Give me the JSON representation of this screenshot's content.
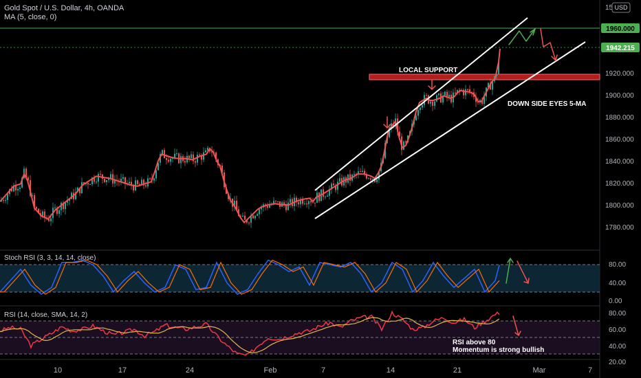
{
  "header": {
    "title": "Gold Spot / U.S. Dollar, 4h, OANDA",
    "ma_label": "MA (5, close, 0)",
    "currency_badge": "USD"
  },
  "price_scale": {
    "ticks": [
      "1780.000",
      "1800.000",
      "1820.000",
      "1840.000",
      "1860.000",
      "1880.000",
      "1900.000",
      "1920.000"
    ],
    "top_tick": "15",
    "level_label": "1960.000",
    "current_label": "1942.215"
  },
  "annotations": {
    "local_support": "LOCAL SUPPORT",
    "down_side": "DOWN SIDE EYES 5-MA",
    "rsi_note_1": "RSI above 80",
    "rsi_note_2": "Momentum is strong bullish"
  },
  "stoch": {
    "title": "Stoch RSI (3, 3, 14, 14, close)",
    "ticks": [
      "80.00",
      "40.00",
      "0.00"
    ]
  },
  "rsi": {
    "title": "RSI (14, close, SMA, 14, 2)",
    "ticks": [
      "80.00",
      "60.00",
      "40.00",
      "20.00"
    ]
  },
  "time_axis": [
    "10",
    "17",
    "24",
    "Feb",
    "7",
    "14",
    "21",
    "Mar",
    "7"
  ],
  "colors": {
    "up": "#26a69a",
    "down": "#ef5350",
    "ma": "#ef5350",
    "level": "#4caf50",
    "support_zone": "#b71c1c",
    "stoch_k": "#2962ff",
    "stoch_d": "#ff6d00",
    "rsi": "#f23645",
    "rsi_ma": "#e0b84c"
  },
  "chart_data": [
    {
      "type": "line",
      "title": "Gold Spot / U.S. Dollar, 4h, OANDA",
      "series": [
        {
          "name": "MA (5, close, 0)",
          "x": [
            0,
            10,
            20,
            30,
            35,
            40,
            45,
            50,
            60,
            70,
            80,
            90,
            100,
            110,
            120,
            130,
            140,
            150,
            160,
            170,
            180,
            190,
            200,
            210,
            220,
            225,
            230,
            235,
            240,
            250,
            260,
            270,
            280,
            290,
            300,
            305,
            310,
            315,
            320,
            325,
            330,
            335,
            340,
            345,
            350,
            355,
            360,
            365,
            370,
            375,
            380,
            390,
            400,
            410,
            420,
            430,
            440,
            450,
            455,
            460,
            470,
            480,
            490,
            500,
            510,
            520,
            530,
            540,
            545,
            550,
            555,
            560,
            565,
            570,
            575,
            580,
            585,
            590,
            595,
            600,
            605,
            610,
            615,
            620,
            625,
            630,
            635,
            640,
            645,
            650,
            655,
            660,
            665,
            670,
            675,
            680,
            685,
            690,
            695,
            700,
            705,
            710,
            715,
            720,
            725,
            727
          ],
          "values": [
            1803,
            1810,
            1817,
            1819,
            1828,
            1822,
            1810,
            1797,
            1790,
            1787,
            1795,
            1800,
            1805,
            1810,
            1818,
            1822,
            1826,
            1825,
            1824,
            1822,
            1820,
            1818,
            1817,
            1819,
            1821,
            1830,
            1840,
            1846,
            1845,
            1843,
            1842,
            1842,
            1841,
            1844,
            1846,
            1851,
            1848,
            1840,
            1835,
            1823,
            1813,
            1804,
            1800,
            1794,
            1788,
            1784,
            1787,
            1790,
            1793,
            1796,
            1798,
            1800,
            1801,
            1800,
            1800,
            1803,
            1805,
            1806,
            1803,
            1807,
            1810,
            1814,
            1818,
            1822,
            1824,
            1828,
            1828,
            1826,
            1824,
            1829,
            1836,
            1852,
            1868,
            1872,
            1876,
            1862,
            1852,
            1854,
            1862,
            1872,
            1885,
            1893,
            1895,
            1897,
            1895,
            1895,
            1896,
            1897,
            1899,
            1898,
            1897,
            1898,
            1902,
            1904,
            1903,
            1903,
            1902,
            1900,
            1894,
            1894,
            1900,
            1906,
            1912,
            1915,
            1930,
            1942
          ]
        }
      ],
      "markers": [
        {
          "label": "1960.000",
          "value": 1960
        },
        {
          "label": "1942.215",
          "value": 1942.215
        }
      ],
      "ylim": [
        1770,
        1980
      ],
      "grid": false,
      "legend": "top-left"
    },
    {
      "type": "line",
      "title": "Stoch RSI (3, 3, 14, 14, close)",
      "series": [
        {
          "name": "",
          "x": [
            0,
            15,
            30,
            45,
            60,
            75,
            90,
            105,
            120,
            135,
            150,
            165,
            180,
            195,
            210,
            225,
            240,
            255,
            270,
            285,
            300,
            315,
            330,
            345,
            360,
            375,
            390,
            405,
            420,
            435,
            450,
            465,
            480,
            495,
            510,
            525,
            540,
            555,
            570,
            585,
            600,
            615,
            630,
            645,
            660,
            675,
            690,
            705,
            720,
            727
          ],
          "values": [
            20,
            45,
            70,
            35,
            15,
            30,
            85,
            85,
            90,
            80,
            55,
            20,
            45,
            65,
            40,
            20,
            30,
            80,
            70,
            25,
            30,
            85,
            40,
            15,
            25,
            60,
            90,
            80,
            65,
            75,
            35,
            85,
            80,
            75,
            85,
            60,
            20,
            40,
            85,
            70,
            20,
            45,
            85,
            55,
            30,
            50,
            70,
            20,
            45,
            85
          ]
        }
      ],
      "ylim": [
        0,
        100
      ]
    },
    {
      "type": "line",
      "title": "RSI (14, close, SMA, 14, 2)",
      "series": [
        {
          "name": "",
          "x": [
            0,
            15,
            30,
            45,
            60,
            75,
            90,
            105,
            120,
            135,
            150,
            165,
            180,
            195,
            210,
            225,
            240,
            255,
            270,
            285,
            300,
            315,
            330,
            345,
            360,
            375,
            390,
            405,
            420,
            435,
            450,
            465,
            480,
            495,
            510,
            525,
            540,
            555,
            570,
            585,
            600,
            615,
            630,
            645,
            660,
            675,
            690,
            705,
            720,
            727
          ],
          "values": [
            58,
            62,
            60,
            40,
            48,
            55,
            63,
            58,
            60,
            64,
            58,
            53,
            56,
            60,
            52,
            57,
            65,
            62,
            60,
            63,
            66,
            52,
            40,
            30,
            28,
            40,
            50,
            48,
            52,
            56,
            58,
            64,
            68,
            62,
            70,
            74,
            75,
            60,
            80,
            72,
            60,
            62,
            70,
            74,
            68,
            72,
            62,
            70,
            78,
            80
          ]
        }
      ],
      "ylim": [
        20,
        85
      ]
    }
  ]
}
